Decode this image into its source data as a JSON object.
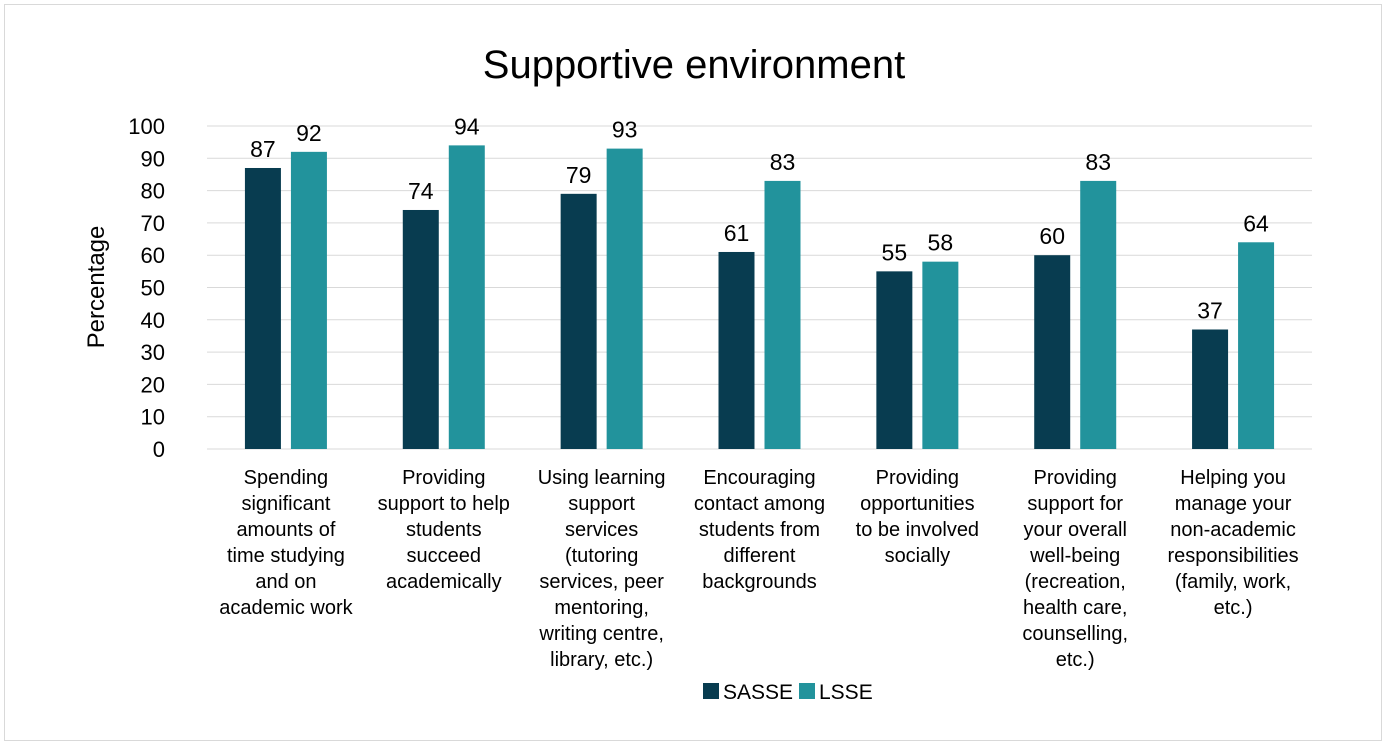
{
  "chart_data": {
    "type": "bar",
    "title": "Supportive environment",
    "xlabel": "",
    "ylabel": "Percentage",
    "ylim": [
      0,
      100
    ],
    "yticks": [
      0,
      10,
      20,
      30,
      40,
      50,
      60,
      70,
      80,
      90,
      100
    ],
    "grid": true,
    "legend_position": "bottom",
    "categories": [
      [
        "Spending",
        "significant",
        "amounts of",
        "time studying",
        "and on",
        "academic work"
      ],
      [
        "Providing",
        "support to help",
        "students",
        "succeed",
        "academically"
      ],
      [
        "Using learning",
        "support",
        "services",
        "(tutoring",
        "services, peer",
        "mentoring,",
        "writing centre,",
        "library, etc.)"
      ],
      [
        "Encouraging",
        "contact among",
        "students from",
        "different",
        "backgrounds"
      ],
      [
        "Providing",
        "opportunities",
        "to be involved",
        "socially"
      ],
      [
        "Providing",
        "support for",
        "your overall",
        "well-being",
        "(recreation,",
        "health care,",
        "counselling,",
        "etc.)"
      ],
      [
        "Helping you",
        "manage your",
        "non-academic",
        "responsibilities",
        "(family, work,",
        "etc.)"
      ]
    ],
    "series": [
      {
        "name": "SASSE",
        "color": "#083c50",
        "values": [
          87,
          74,
          79,
          61,
          55,
          60,
          37
        ]
      },
      {
        "name": "LSSE",
        "color": "#22939c",
        "values": [
          92,
          94,
          93,
          83,
          58,
          83,
          64
        ]
      }
    ]
  }
}
